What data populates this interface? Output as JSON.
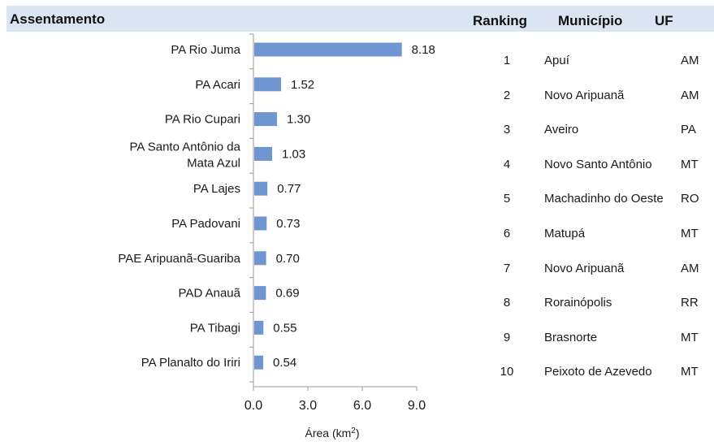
{
  "header": {
    "assentamento": "Assentamento",
    "ranking": "Ranking",
    "municipio": "Município",
    "uf": "UF"
  },
  "chart_data": {
    "type": "bar",
    "orientation": "horizontal",
    "categories": [
      [
        "PA Rio Juma"
      ],
      [
        "PA Acari"
      ],
      [
        "PA Rio Cupari"
      ],
      [
        "PA Santo Antônio da",
        "Mata Azul"
      ],
      [
        "PA Lajes"
      ],
      [
        "PA Padovani"
      ],
      [
        "PAE Aripuanã-Guariba"
      ],
      [
        "PAD Anauã"
      ],
      [
        "PA Tibagi"
      ],
      [
        "PA Planalto do Iriri"
      ]
    ],
    "values": [
      8.18,
      1.52,
      1.3,
      1.03,
      0.77,
      0.73,
      0.7,
      0.69,
      0.55,
      0.54
    ],
    "value_labels": [
      "8.18",
      "1.52",
      "1.30",
      "1.03",
      "0.77",
      "0.73",
      "0.70",
      "0.69",
      "0.55",
      "0.54"
    ],
    "xticks": [
      0,
      3,
      6,
      9
    ],
    "xtick_labels": [
      "0.0",
      "3.0",
      "6.0",
      "9.0"
    ],
    "xlim": [
      0,
      9
    ],
    "xlabel": "Área (km",
    "xlabel_sup": "2",
    "xlabel_end": ")",
    "bar_color": "#6f96d1",
    "grid": false
  },
  "table": {
    "rows": [
      {
        "rank": "1",
        "municipio": "Apuí",
        "uf": "AM"
      },
      {
        "rank": "2",
        "municipio": "Novo Aripuanã",
        "uf": "AM"
      },
      {
        "rank": "3",
        "municipio": "Aveiro",
        "uf": "PA"
      },
      {
        "rank": "4",
        "municipio": "Novo Santo Antônio",
        "uf": "MT"
      },
      {
        "rank": "5",
        "municipio": "Machadinho do Oeste",
        "uf": "RO"
      },
      {
        "rank": "6",
        "municipio": "Matupá",
        "uf": "MT"
      },
      {
        "rank": "7",
        "municipio": "Novo Aripuanã",
        "uf": "AM"
      },
      {
        "rank": "8",
        "municipio": "Rorainópolis",
        "uf": "RR"
      },
      {
        "rank": "9",
        "municipio": "Brasnorte",
        "uf": "MT"
      },
      {
        "rank": "10",
        "municipio": "Peixoto de Azevedo",
        "uf": "MT"
      }
    ]
  }
}
